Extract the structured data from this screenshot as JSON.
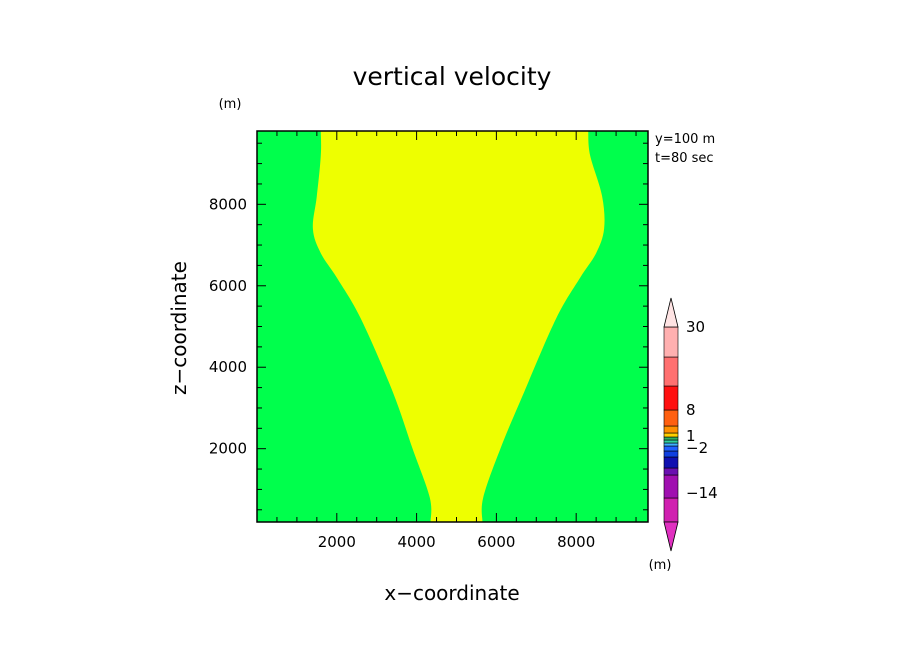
{
  "chart_data": {
    "type": "heatmap",
    "title": "vertical velocity",
    "xlabel": "x−coordinate",
    "ylabel": "z−coordinate",
    "y_unit": "(m)",
    "colorbar_unit": "(m)",
    "annotations": [
      "y=100 m",
      "t=80 sec"
    ],
    "xlim": [
      0,
      9800
    ],
    "ylim": [
      200,
      9800
    ],
    "x_ticks": [
      2000,
      4000,
      6000,
      8000
    ],
    "x_tick_labels": [
      "2000",
      "4000",
      "6000",
      "8000"
    ],
    "y_ticks": [
      2000,
      4000,
      6000,
      8000
    ],
    "y_tick_labels": [
      "2000",
      "4000",
      "6000",
      "8000"
    ],
    "background_fill": "#00ff4c",
    "region_fill": "#eeff00",
    "region_boundary_left": [
      [
        4350,
        200
      ],
      [
        4330,
        800
      ],
      [
        3900,
        2000
      ],
      [
        3400,
        3400
      ],
      [
        2600,
        5200
      ],
      [
        2000,
        6200
      ],
      [
        1600,
        6800
      ],
      [
        1400,
        7400
      ],
      [
        1500,
        8200
      ],
      [
        1600,
        9200
      ],
      [
        1600,
        9800
      ]
    ],
    "region_boundary_right": [
      [
        5650,
        200
      ],
      [
        5670,
        800
      ],
      [
        6100,
        2000
      ],
      [
        6700,
        3400
      ],
      [
        7500,
        5200
      ],
      [
        8100,
        6200
      ],
      [
        8500,
        6800
      ],
      [
        8700,
        7400
      ],
      [
        8650,
        8200
      ],
      [
        8350,
        9200
      ],
      [
        8300,
        9800
      ]
    ],
    "colorbar": {
      "tick_labels": [
        "30",
        "8",
        "1",
        "−2",
        "−14"
      ],
      "colors": [
        "#d020b0",
        "#a010b0",
        "#6a10b0",
        "#1010b0",
        "#1040e0",
        "#2060ff",
        "#40b0ff",
        "#30d0a0",
        "#30b060",
        "#ffd000",
        "#ff9000",
        "#ff6010",
        "#ff1010",
        "#ff7070",
        "#ffb0b0"
      ]
    }
  }
}
